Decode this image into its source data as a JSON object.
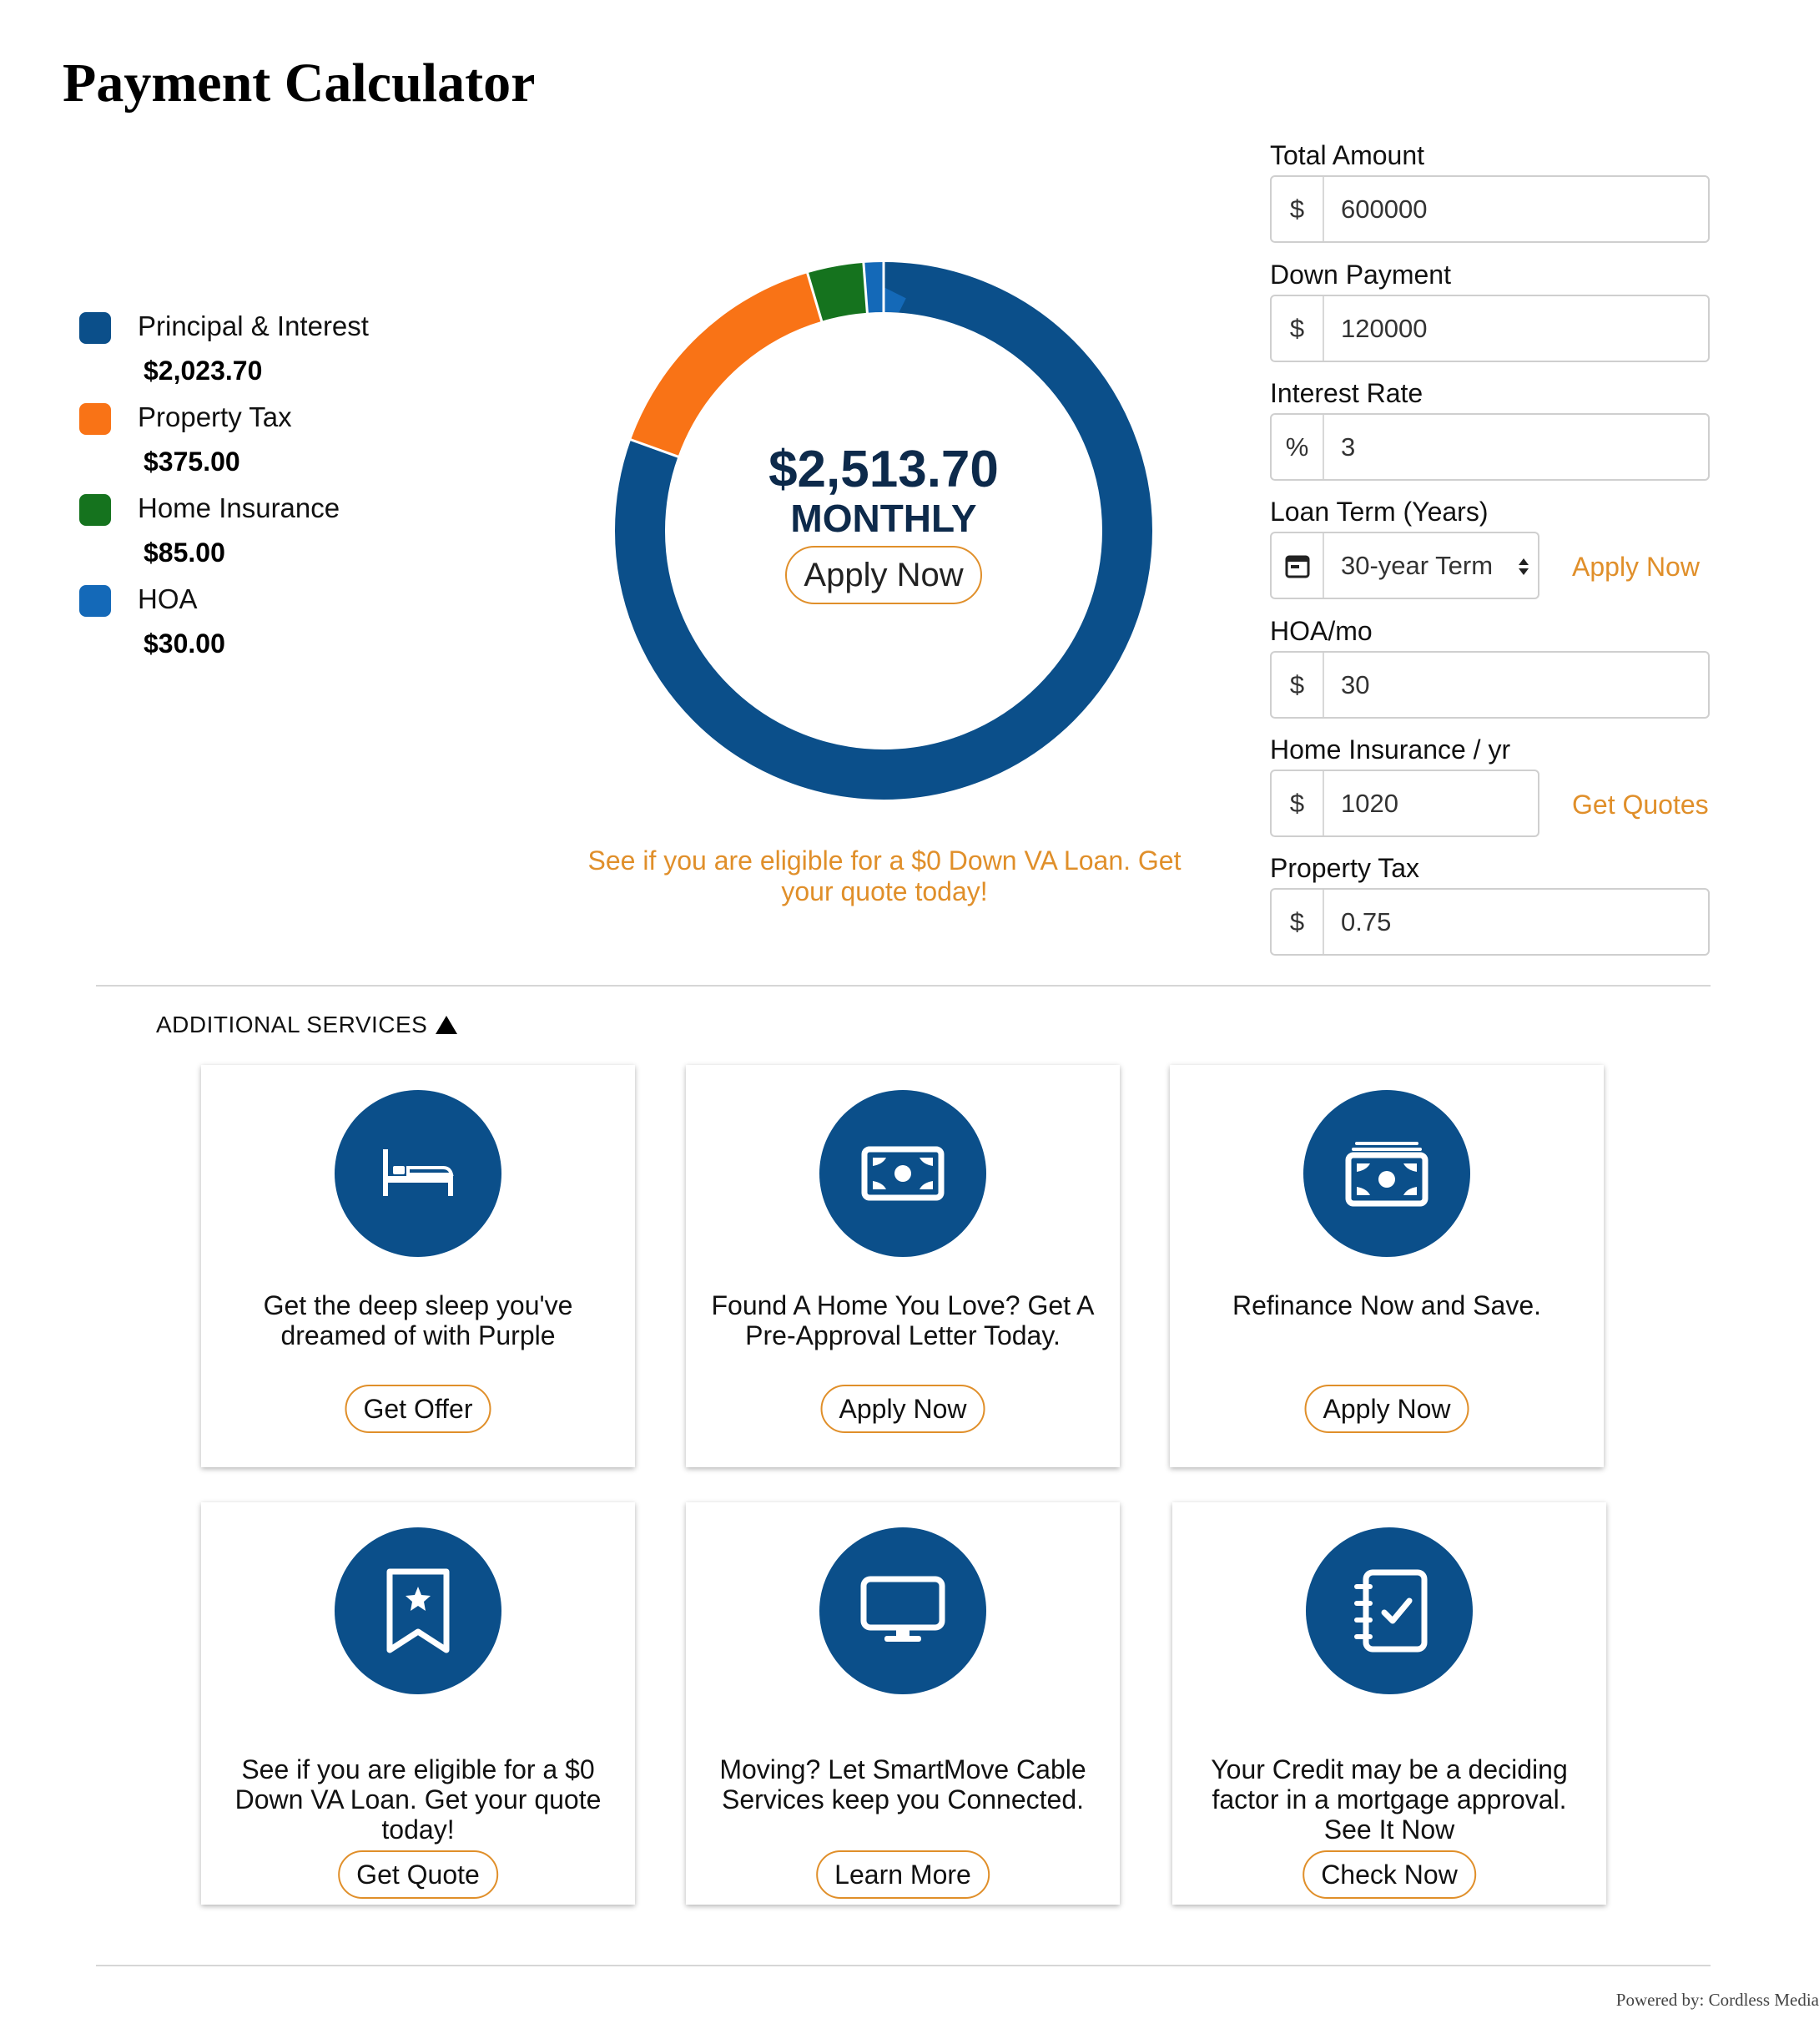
{
  "page": {
    "title": "Payment Calculator"
  },
  "legend": [
    {
      "label": "Principal & Interest",
      "value": "$2,023.70",
      "color": "#0b4f8a"
    },
    {
      "label": "Property Tax",
      "value": "$375.00",
      "color": "#f97316"
    },
    {
      "label": "Home Insurance",
      "value": "$85.00",
      "color": "#15731e"
    },
    {
      "label": "HOA",
      "value": "$30.00",
      "color": "#1469b8"
    }
  ],
  "donut": {
    "amount": "$2,513.70",
    "period": "MONTHLY",
    "apply_label": "Apply Now"
  },
  "promo_text": "See if you are eligible for a $0 Down VA Loan. Get your quote today!",
  "form": {
    "total_amount": {
      "label": "Total Amount",
      "prefix": "$",
      "value": "600000"
    },
    "down_payment": {
      "label": "Down Payment",
      "prefix": "$",
      "value": "120000"
    },
    "interest_rate": {
      "label": "Interest Rate",
      "prefix": "%",
      "value": "3"
    },
    "loan_term": {
      "label": "Loan Term (Years)",
      "value": "30-year Term",
      "icon": "calendar-icon",
      "side_link": "Apply Now"
    },
    "hoa": {
      "label": "HOA/mo",
      "prefix": "$",
      "value": "30"
    },
    "home_insurance": {
      "label": "Home Insurance / yr",
      "prefix": "$",
      "value": "1020",
      "side_link": "Get Quotes"
    },
    "property_tax": {
      "label": "Property Tax",
      "prefix": "$",
      "value": "0.75"
    }
  },
  "services": {
    "heading": "ADDITIONAL SERVICES",
    "cards": [
      {
        "icon": "bed-icon",
        "text": "Get the deep sleep you've dreamed of with Purple",
        "button": "Get Offer"
      },
      {
        "icon": "money-bill-icon",
        "text": "Found A Home You Love? Get A Pre-Approval Letter Today.",
        "button": "Apply Now"
      },
      {
        "icon": "money-stack-icon",
        "text": "Refinance Now and Save.",
        "button": "Apply Now"
      },
      {
        "icon": "bookmark-star-icon",
        "text": "See if you are eligible for a $0 Down VA Loan. Get your quote today!",
        "button": "Get Quote"
      },
      {
        "icon": "monitor-icon",
        "text": "Moving? Let SmartMove Cable Services keep you Connected.",
        "button": "Learn More"
      },
      {
        "icon": "checklist-notebook-icon",
        "text": "Your Credit may be a deciding factor in a mortgage approval. See It Now",
        "button": "Check Now"
      }
    ]
  },
  "footer": {
    "text": "Powered by: Cordless Media"
  },
  "chart_data": {
    "type": "pie",
    "categories": [
      "Principal & Interest",
      "Property Tax",
      "Home Insurance",
      "HOA"
    ],
    "values": [
      2023.7,
      375.0,
      85.0,
      30.0
    ],
    "colors": [
      "#0b4f8a",
      "#f97316",
      "#15731e",
      "#1469b8"
    ],
    "donut": true,
    "total": 2513.7
  }
}
